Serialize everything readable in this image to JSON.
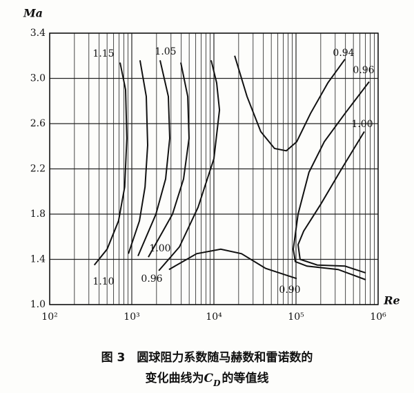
{
  "chart_data": {
    "type": "line",
    "xscale": "log",
    "grid": true,
    "color": "#111111",
    "ylabel": "Ma",
    "xlabel": "Re",
    "xlim": [
      100,
      1000000
    ],
    "ylim": [
      1.0,
      3.4
    ],
    "xticks": [
      {
        "value": 100,
        "label": "10²"
      },
      {
        "value": 1000,
        "label": "10³"
      },
      {
        "value": 10000,
        "label": "10⁴"
      },
      {
        "value": 100000,
        "label": "10⁵"
      },
      {
        "value": 1000000,
        "label": "10⁶"
      }
    ],
    "yticks": [
      {
        "value": 1.0,
        "label": "1.0"
      },
      1.4,
      1.8,
      2.2,
      2.6,
      {
        "value": 3.0,
        "label": "3.0"
      },
      3.4
    ],
    "series": [
      {
        "name": "1.15",
        "x": [
          720,
          840,
          870,
          820,
          690,
          500,
          350
        ],
        "y": [
          3.14,
          2.9,
          2.47,
          2.04,
          1.74,
          1.49,
          1.35
        ]
      },
      {
        "name": "1.10",
        "x": [
          1260,
          1500,
          1560,
          1450,
          1240,
          910
        ],
        "y": [
          3.16,
          2.84,
          2.41,
          2.04,
          1.74,
          1.45
        ]
      },
      {
        "name": "1.05",
        "x": [
          2210,
          2790,
          2900,
          2580,
          1970,
          1190
        ],
        "y": [
          3.16,
          2.84,
          2.47,
          2.11,
          1.8,
          1.43
        ]
      },
      {
        "name": "1.00",
        "x": [
          3950,
          4800,
          4980,
          4270,
          3130,
          1590
        ],
        "y": [
          3.14,
          2.84,
          2.47,
          2.11,
          1.8,
          1.42
        ]
      },
      {
        "name": "0.96",
        "x": [
          2130,
          3800,
          6410,
          10000,
          11700,
          10800,
          9250
        ],
        "y": [
          1.3,
          1.51,
          1.86,
          2.29,
          2.72,
          2.96,
          3.16
        ]
      },
      {
        "name": "0.94",
        "x": [
          17900,
          25300,
          37200,
          54800,
          76200,
          102000,
          150000,
          244000,
          395000
        ],
        "y": [
          3.2,
          2.84,
          2.53,
          2.38,
          2.36,
          2.44,
          2.69,
          2.96,
          3.17
        ]
      },
      {
        "name": "0.90",
        "x": [
          2840,
          6170,
          12100,
          21700,
          42700,
          76200,
          102000
        ],
        "y": [
          1.31,
          1.45,
          1.49,
          1.45,
          1.32,
          1.26,
          1.23
        ]
      },
      {
        "name": "0.96",
        "x": [
          778000,
          395000,
          221000,
          144000,
          106000,
          92500,
          98000,
          136000,
          326000,
          706000
        ],
        "y": [
          2.97,
          2.69,
          2.44,
          2.17,
          1.8,
          1.49,
          1.38,
          1.34,
          1.31,
          1.22
        ]
      },
      {
        "name": "1.00",
        "x": [
          679000,
          359000,
          201000,
          124000,
          106000,
          112000,
          182000,
          395000,
          706000
        ],
        "y": [
          2.53,
          2.2,
          1.89,
          1.65,
          1.53,
          1.4,
          1.35,
          1.34,
          1.28
        ]
      }
    ],
    "caption": {
      "line1": "图 3　圆球阻力系数随马赫数和雷诺数的",
      "line2": [
        "变化曲线为",
        "C",
        "D",
        "的等值线"
      ]
    }
  }
}
